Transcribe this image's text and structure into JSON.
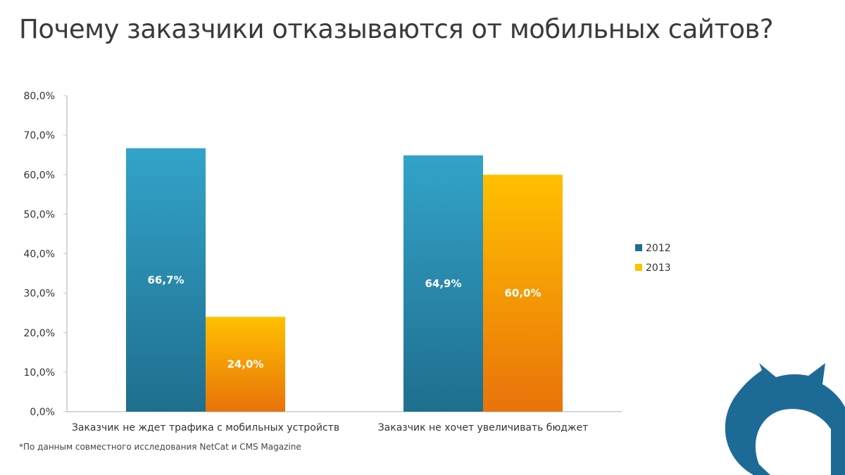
{
  "title": "Почему заказчики отказываются от мобильных сайтов?",
  "footnote": "*По данным совместного исследования NetCat и CMS Magazine",
  "colors": {
    "series_2012_top": "#33A3C9",
    "series_2012_bottom": "#1F6E8E",
    "series_2013_top": "#FFC000",
    "series_2013_bottom": "#E8730A",
    "logo": "#1E6A96"
  },
  "chart_data": {
    "type": "bar",
    "categories": [
      "Заказчик не ждет трафика с мобильных устройств",
      "Заказчик не хочет увеличивать бюджет"
    ],
    "series": [
      {
        "name": "2012",
        "values": [
          66.7,
          64.9
        ],
        "labels": [
          "66,7%",
          "64,9%"
        ]
      },
      {
        "name": "2013",
        "values": [
          24.0,
          60.0
        ],
        "labels": [
          "24,0%",
          "60,0%"
        ]
      }
    ],
    "ylim": [
      0,
      80
    ],
    "yticks": [
      "0,0%",
      "10,0%",
      "20,0%",
      "30,0%",
      "40,0%",
      "50,0%",
      "60,0%",
      "70,0%",
      "80,0%"
    ],
    "grid": false,
    "legend": "right"
  }
}
